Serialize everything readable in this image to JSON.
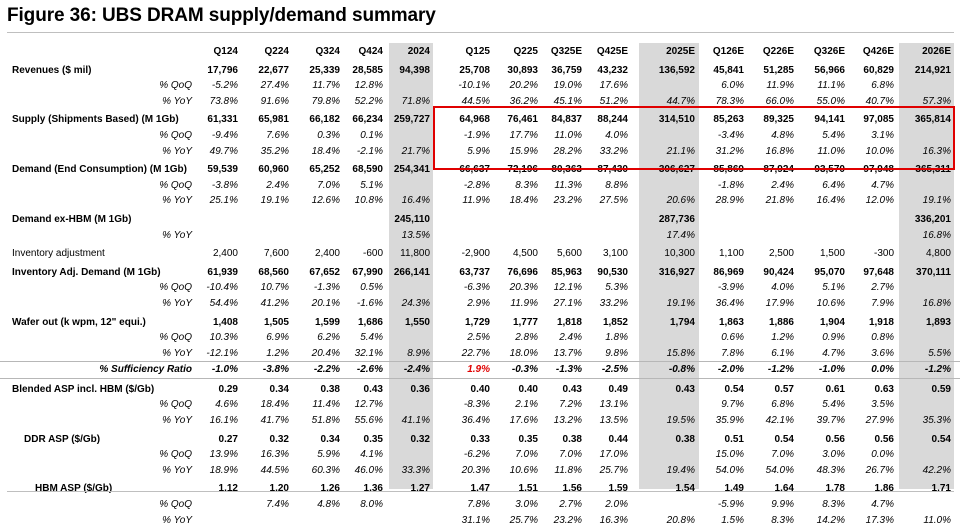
{
  "title": "Figure 36: UBS DRAM supply/demand summary",
  "columns": [
    "Q124",
    "Q224",
    "Q324",
    "Q424",
    "2024",
    "Q125",
    "Q225",
    "Q325E",
    "Q425E",
    "2025E",
    "Q126E",
    "Q226E",
    "Q326E",
    "Q426E",
    "2026E"
  ],
  "rows": [
    {
      "label": "Revenues ($ mil)",
      "style": "bold",
      "values": [
        "17,796",
        "22,677",
        "25,339",
        "28,585",
        "94,398",
        "25,708",
        "30,893",
        "36,759",
        "43,232",
        "136,592",
        "45,841",
        "51,285",
        "56,966",
        "60,829",
        "214,921"
      ]
    },
    {
      "label": "% QoQ",
      "style": "sub",
      "values": [
        "-5.2%",
        "27.4%",
        "11.7%",
        "12.8%",
        "",
        "-10.1%",
        "20.2%",
        "19.0%",
        "17.6%",
        "",
        "6.0%",
        "11.9%",
        "11.1%",
        "6.8%",
        ""
      ]
    },
    {
      "label": "% YoY",
      "style": "sub",
      "values": [
        "73.8%",
        "91.6%",
        "79.8%",
        "52.2%",
        "71.8%",
        "44.5%",
        "36.2%",
        "45.1%",
        "51.2%",
        "44.7%",
        "78.3%",
        "66.0%",
        "55.0%",
        "40.7%",
        "57.3%"
      ]
    },
    {
      "label": "Supply (Shipments Based) (M 1Gb)",
      "style": "bold",
      "values": [
        "61,331",
        "65,981",
        "66,182",
        "66,234",
        "259,727",
        "64,968",
        "76,461",
        "84,837",
        "88,244",
        "314,510",
        "85,263",
        "89,325",
        "94,141",
        "97,085",
        "365,814"
      ]
    },
    {
      "label": "% QoQ",
      "style": "sub",
      "values": [
        "-9.4%",
        "7.6%",
        "0.3%",
        "0.1%",
        "",
        "-1.9%",
        "17.7%",
        "11.0%",
        "4.0%",
        "",
        "-3.4%",
        "4.8%",
        "5.4%",
        "3.1%",
        ""
      ]
    },
    {
      "label": "% YoY",
      "style": "sub",
      "values": [
        "49.7%",
        "35.2%",
        "18.4%",
        "-2.1%",
        "21.7%",
        "5.9%",
        "15.9%",
        "28.2%",
        "33.2%",
        "21.1%",
        "31.2%",
        "16.8%",
        "11.0%",
        "10.0%",
        "16.3%"
      ]
    },
    {
      "label": "Demand (End Consumption) (M 1Gb)",
      "style": "bold",
      "values": [
        "59,539",
        "60,960",
        "65,252",
        "68,590",
        "254,341",
        "66,637",
        "72,196",
        "80,363",
        "87,430",
        "306,627",
        "85,869",
        "87,924",
        "93,570",
        "97,948",
        "365,311"
      ]
    },
    {
      "label": "% QoQ",
      "style": "sub",
      "values": [
        "-3.8%",
        "2.4%",
        "7.0%",
        "5.1%",
        "",
        "-2.8%",
        "8.3%",
        "11.3%",
        "8.8%",
        "",
        "-1.8%",
        "2.4%",
        "6.4%",
        "4.7%",
        ""
      ]
    },
    {
      "label": "% YoY",
      "style": "sub",
      "values": [
        "25.1%",
        "19.1%",
        "12.6%",
        "10.8%",
        "16.4%",
        "11.9%",
        "18.4%",
        "23.2%",
        "27.5%",
        "20.6%",
        "28.9%",
        "21.8%",
        "16.4%",
        "12.0%",
        "19.1%"
      ]
    },
    {
      "label": "Demand ex-HBM (M 1Gb)",
      "style": "bold",
      "values": [
        "",
        "",
        "",
        "",
        "245,110",
        "",
        "",
        "",
        "",
        "287,736",
        "",
        "",
        "",
        "",
        "336,201"
      ]
    },
    {
      "label": "% YoY",
      "style": "sub",
      "values": [
        "",
        "",
        "",
        "",
        "13.5%",
        "",
        "",
        "",
        "",
        "17.4%",
        "",
        "",
        "",
        "",
        "16.8%"
      ]
    },
    {
      "label": "Inventory adjustment",
      "style": "plain",
      "values": [
        "2,400",
        "7,600",
        "2,400",
        "-600",
        "11,800",
        "-2,900",
        "4,500",
        "5,600",
        "3,100",
        "10,300",
        "1,100",
        "2,500",
        "1,500",
        "-300",
        "4,800"
      ]
    },
    {
      "label": "Inventory Adj. Demand (M 1Gb)",
      "style": "bold",
      "values": [
        "61,939",
        "68,560",
        "67,652",
        "67,990",
        "266,141",
        "63,737",
        "76,696",
        "85,963",
        "90,530",
        "316,927",
        "86,969",
        "90,424",
        "95,070",
        "97,648",
        "370,111"
      ]
    },
    {
      "label": "% QoQ",
      "style": "sub",
      "values": [
        "-10.4%",
        "10.7%",
        "-1.3%",
        "0.5%",
        "",
        "-6.3%",
        "20.3%",
        "12.1%",
        "5.3%",
        "",
        "-3.9%",
        "4.0%",
        "5.1%",
        "2.7%",
        ""
      ]
    },
    {
      "label": "% YoY",
      "style": "sub",
      "values": [
        "54.4%",
        "41.2%",
        "20.1%",
        "-1.6%",
        "24.3%",
        "2.9%",
        "11.9%",
        "27.1%",
        "33.2%",
        "19.1%",
        "36.4%",
        "17.9%",
        "10.6%",
        "7.9%",
        "16.8%"
      ]
    },
    {
      "label": "Wafer out (k wpm, 12\" equi.)",
      "style": "bold",
      "values": [
        "1,408",
        "1,505",
        "1,599",
        "1,686",
        "1,550",
        "1,729",
        "1,777",
        "1,818",
        "1,852",
        "1,794",
        "1,863",
        "1,886",
        "1,904",
        "1,918",
        "1,893"
      ]
    },
    {
      "label": "% QoQ",
      "style": "sub",
      "values": [
        "10.3%",
        "6.9%",
        "6.2%",
        "5.4%",
        "",
        "2.5%",
        "2.8%",
        "2.4%",
        "1.8%",
        "",
        "0.6%",
        "1.2%",
        "0.9%",
        "0.8%",
        ""
      ]
    },
    {
      "label": "% YoY",
      "style": "sub",
      "values": [
        "-12.1%",
        "1.2%",
        "20.4%",
        "32.1%",
        "8.9%",
        "22.7%",
        "18.0%",
        "13.7%",
        "9.8%",
        "15.8%",
        "7.8%",
        "6.1%",
        "4.7%",
        "3.6%",
        "5.5%"
      ]
    },
    {
      "label": "% Sufficiency Ratio",
      "style": "sfr",
      "values": [
        "-1.0%",
        "-3.8%",
        "-2.2%",
        "-2.6%",
        "-2.4%",
        "1.9%",
        "-0.3%",
        "-1.3%",
        "-2.5%",
        "-0.8%",
        "-2.0%",
        "-1.2%",
        "-1.0%",
        "0.0%",
        "-1.2%"
      ]
    },
    {
      "label": "Blended ASP incl. HBM ($/Gb)",
      "style": "bold",
      "values": [
        "0.29",
        "0.34",
        "0.38",
        "0.43",
        "0.36",
        "0.40",
        "0.40",
        "0.43",
        "0.49",
        "0.43",
        "0.54",
        "0.57",
        "0.61",
        "0.63",
        "0.59"
      ]
    },
    {
      "label": "% QoQ",
      "style": "sub",
      "values": [
        "4.6%",
        "18.4%",
        "11.4%",
        "12.7%",
        "",
        "-8.3%",
        "2.1%",
        "7.2%",
        "13.1%",
        "",
        "9.7%",
        "6.8%",
        "5.4%",
        "3.5%",
        ""
      ]
    },
    {
      "label": "% YoY",
      "style": "sub",
      "values": [
        "16.1%",
        "41.7%",
        "51.8%",
        "55.6%",
        "41.1%",
        "36.4%",
        "17.6%",
        "13.2%",
        "13.5%",
        "19.5%",
        "35.9%",
        "42.1%",
        "39.7%",
        "27.9%",
        "35.3%"
      ]
    },
    {
      "label": "DDR ASP ($/Gb)",
      "style": "bold-ind",
      "values": [
        "0.27",
        "0.32",
        "0.34",
        "0.35",
        "0.32",
        "0.33",
        "0.35",
        "0.38",
        "0.44",
        "0.38",
        "0.51",
        "0.54",
        "0.56",
        "0.56",
        "0.54"
      ]
    },
    {
      "label": "% QoQ",
      "style": "sub",
      "values": [
        "13.9%",
        "16.3%",
        "5.9%",
        "4.1%",
        "",
        "-6.2%",
        "7.0%",
        "7.0%",
        "17.0%",
        "",
        "15.0%",
        "7.0%",
        "3.0%",
        "0.0%",
        ""
      ]
    },
    {
      "label": "% YoY",
      "style": "sub",
      "values": [
        "18.9%",
        "44.5%",
        "60.3%",
        "46.0%",
        "33.3%",
        "20.3%",
        "10.6%",
        "11.8%",
        "25.7%",
        "19.4%",
        "54.0%",
        "54.0%",
        "48.3%",
        "26.7%",
        "42.2%"
      ]
    },
    {
      "label": "HBM ASP ($/Gb)",
      "style": "bold-hbm",
      "values": [
        "1.12",
        "1.20",
        "1.26",
        "1.36",
        "1.27",
        "1.47",
        "1.51",
        "1.56",
        "1.59",
        "1.54",
        "1.49",
        "1.64",
        "1.78",
        "1.86",
        "1.71"
      ]
    },
    {
      "label": "% QoQ",
      "style": "sub",
      "values": [
        "",
        "7.4%",
        "4.8%",
        "8.0%",
        "",
        "7.8%",
        "3.0%",
        "2.7%",
        "2.0%",
        "",
        "-5.9%",
        "9.9%",
        "8.3%",
        "4.7%",
        ""
      ]
    },
    {
      "label": "% YoY",
      "style": "sub",
      "values": [
        "",
        "",
        "",
        "",
        "",
        "31.1%",
        "25.7%",
        "23.2%",
        "16.3%",
        "20.8%",
        "1.5%",
        "8.3%",
        "14.2%",
        "17.3%",
        "11.0%"
      ]
    }
  ],
  "colors": {
    "highlight_box": "#e00000",
    "annual_shade": "#d9d9d9",
    "negative_emphasis": "#e00000"
  }
}
